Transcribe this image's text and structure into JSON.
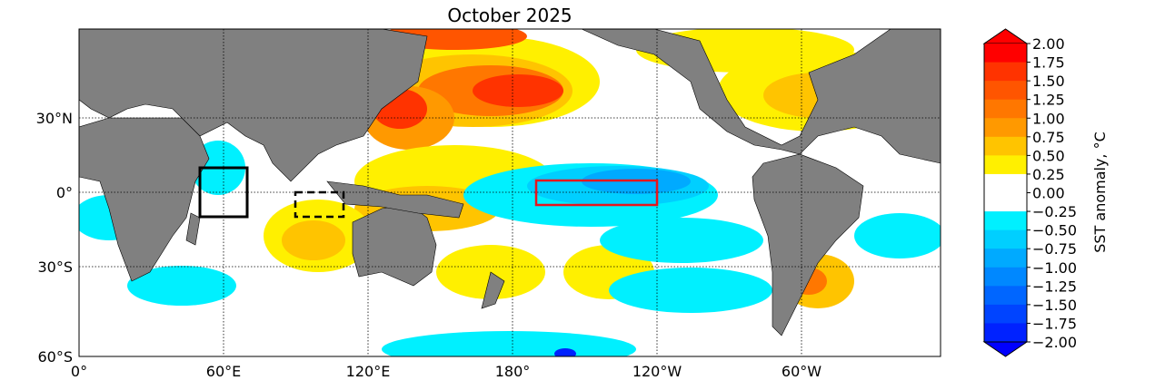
{
  "title": "October 2025",
  "map": {
    "lat_labels": [
      "30°N",
      "0°",
      "30°S",
      "60°S"
    ],
    "lon_labels": [
      "0°",
      "60°E",
      "120°E",
      "180°",
      "120°W",
      "60°W"
    ],
    "boxes": [
      {
        "name": "western-indian-ocean-box",
        "lon": [
          50,
          70
        ],
        "lat": [
          -10,
          10
        ],
        "color": "#000000",
        "style": "solid"
      },
      {
        "name": "eastern-indian-ocean-box",
        "lon": [
          90,
          110
        ],
        "lat": [
          -10,
          0
        ],
        "color": "#000000",
        "style": "dashed"
      },
      {
        "name": "nino34-box",
        "lon": [
          190,
          240
        ],
        "lat": [
          -5,
          5
        ],
        "color": "#e8141c",
        "style": "solid"
      }
    ]
  },
  "colorbar": {
    "label": "SST anomaly, $^\\circ$C",
    "label_text": "SST anomaly,  °C",
    "ticks": [
      "2.00",
      "1.75",
      "1.50",
      "1.25",
      "1.00",
      "0.75",
      "0.50",
      "0.25",
      "0.00",
      "−0.25",
      "−0.50",
      "−0.75",
      "−1.00",
      "−1.25",
      "−1.50",
      "−1.75",
      "−2.00"
    ],
    "colors": [
      "#ff0000",
      "#ff3300",
      "#ff5500",
      "#ff7700",
      "#ff9900",
      "#ffc400",
      "#fff000",
      "#ffffff",
      "#ffffff",
      "#00f0ff",
      "#00cfff",
      "#00aaff",
      "#0088ff",
      "#0066ff",
      "#0044ff",
      "#0022ff"
    ],
    "over_color": "#ff0000",
    "under_color": "#0000ff"
  }
}
